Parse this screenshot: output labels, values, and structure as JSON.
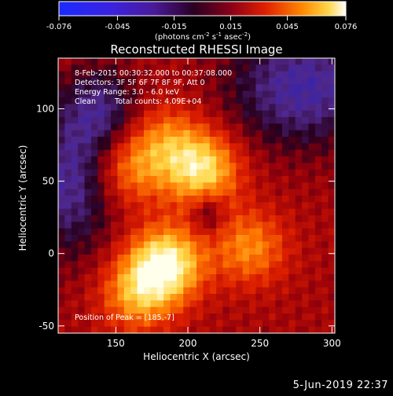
{
  "colorbar": {
    "tick_labels": [
      "-0.076",
      "-0.045",
      "-0.015",
      "0.015",
      "0.045",
      "0.076"
    ],
    "tick_values": [
      -0.076,
      -0.045,
      -0.015,
      0.015,
      0.045,
      0.076
    ],
    "range": [
      -0.076,
      0.076
    ],
    "unit_main": "(photons cm",
    "unit_exp1": "-2",
    "unit_mid": " s",
    "unit_exp2": "-1",
    "unit_mid2": " asec",
    "unit_exp3": "-2",
    "unit_end": ")"
  },
  "chart_data": {
    "type": "heatmap",
    "title": "Reconstructed RHESSI Image",
    "xlabel": "Heliocentric X (arcsec)",
    "ylabel": "Heliocentric Y (arcsec)",
    "xlim": [
      110,
      302
    ],
    "ylim": [
      -55,
      135
    ],
    "xticks": [
      150,
      200,
      250,
      300
    ],
    "yticks": [
      -50,
      0,
      50,
      100
    ],
    "annotations": [
      "8-Feb-2015 00:30:32.000 to 00:37:08.000",
      "Detectors: 3F 5F 6F 7F 8F 9F, Att 0",
      "Energy Range: 3.0 - 6.0 keV",
      "Clean",
      "Total counts: 4.09E+04"
    ],
    "peak_label": "Position of Peak = [185,-7]",
    "peak_position": [
      185,
      -7
    ],
    "sources": [
      {
        "x": 185,
        "y": -7,
        "amp": 1.0
      },
      {
        "x": 210,
        "y": 58,
        "amp": 0.85
      },
      {
        "x": 165,
        "y": -28,
        "amp": 0.62
      },
      {
        "x": 243,
        "y": 4,
        "amp": 0.55
      },
      {
        "x": 160,
        "y": 58,
        "amp": 0.5
      },
      {
        "x": 185,
        "y": 78,
        "amp": 0.45
      }
    ]
  },
  "footer": {
    "timestamp": "5-Jun-2019 22:37"
  }
}
